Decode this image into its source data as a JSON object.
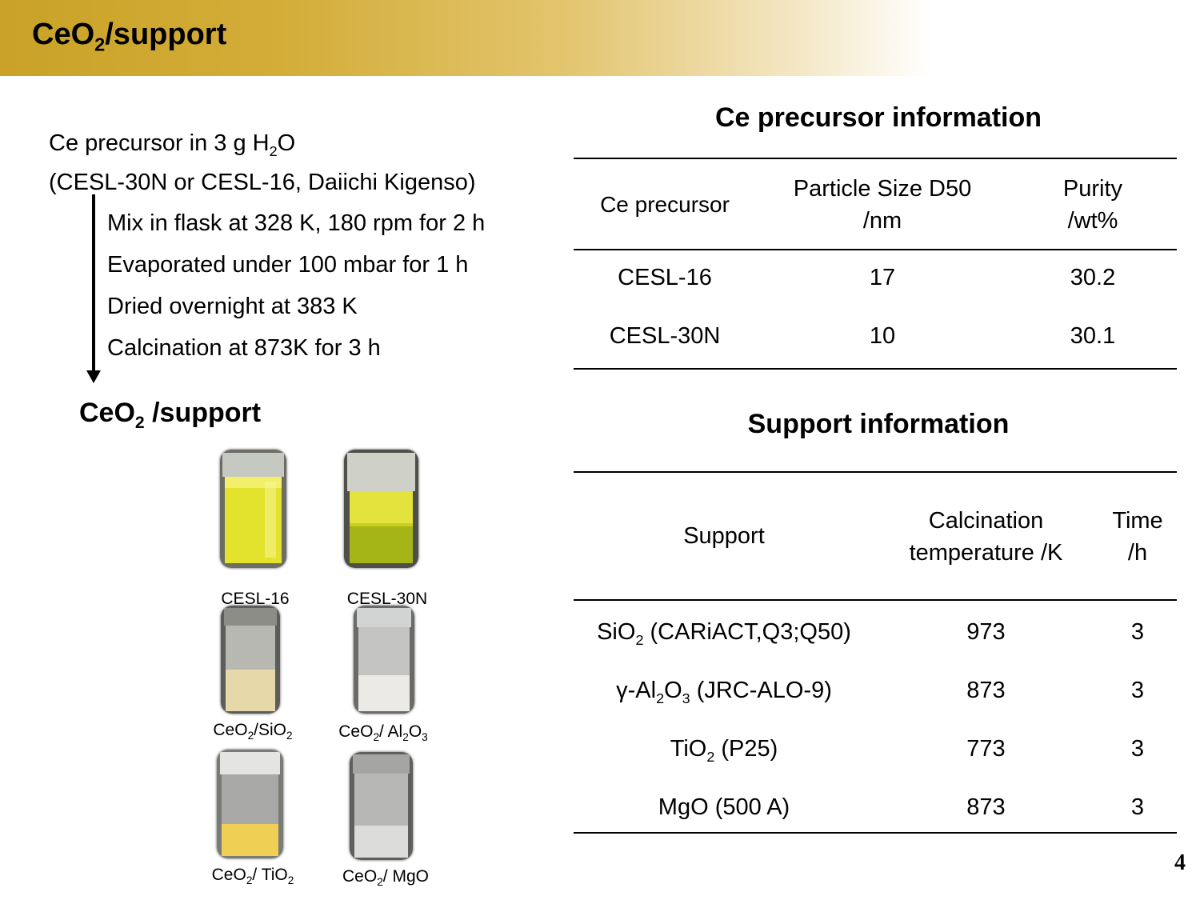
{
  "banner": {
    "title_main": "CeO",
    "title_sub": "2",
    "title_rest": "/support"
  },
  "procedure": {
    "head_line1_a": "Ce precursor in 3 g H",
    "head_line1_sub": "2",
    "head_line1_b": "O",
    "head_line2": "(CESL-30N or CESL-16, Daiichi Kigenso)",
    "steps": [
      "Mix in flask at 328 K, 180 rpm for 2 h",
      "Evaporated under 100 mbar for 1 h",
      "Dried overnight at 383 K",
      "Calcination at 873K for 3 h"
    ],
    "result_main": "CeO",
    "result_sub": "2",
    "result_rest": " /support"
  },
  "photos": [
    {
      "label": "CESL-16"
    },
    {
      "label": "CESL-30N"
    },
    {
      "label_a": "CeO",
      "label_sub1": "2",
      "label_b": "/SiO",
      "label_sub2": "2"
    },
    {
      "label_a": "CeO",
      "label_sub1": "2",
      "label_b": "/ Al",
      "label_sub2": "2",
      "label_c": "O",
      "label_sub3": "3"
    },
    {
      "label_a": "CeO",
      "label_sub1": "2",
      "label_b": "/ TiO",
      "label_sub2": "2"
    },
    {
      "label_a": "CeO",
      "label_sub1": "2",
      "label_b": "/ MgO"
    }
  ],
  "precursor_table": {
    "title": "Ce precursor information",
    "headers": [
      "Ce precursor",
      "Particle Size D50",
      "/nm",
      "Purity",
      "/wt%"
    ],
    "rows": [
      [
        "CESL-16",
        "17",
        "30.2"
      ],
      [
        "CESL-30N",
        "10",
        "30.1"
      ]
    ]
  },
  "support_table": {
    "title": "Support information",
    "headers": [
      "Support",
      "Calcination",
      "temperature /K",
      "Time",
      "/h"
    ],
    "rows": [
      {
        "a": "SiO",
        "s": "2",
        "b": " (CARiACT,Q3;Q50)",
        "temp": "973",
        "time": "3"
      },
      {
        "a": "γ-Al",
        "s": "2",
        "b": "O",
        "s2": "3",
        "c": " (JRC-ALO-9)",
        "temp": "873",
        "time": "3"
      },
      {
        "a": "TiO",
        "s": "2",
        "b": " (P25)",
        "temp": "773",
        "time": "3"
      },
      {
        "a": "MgO (500 A)",
        "temp": "873",
        "time": "3"
      }
    ]
  },
  "page_number": "4",
  "colors": {
    "banner_gold": "#c9a227",
    "yellow_liquid": "#e8e42a",
    "text": "#000000"
  }
}
